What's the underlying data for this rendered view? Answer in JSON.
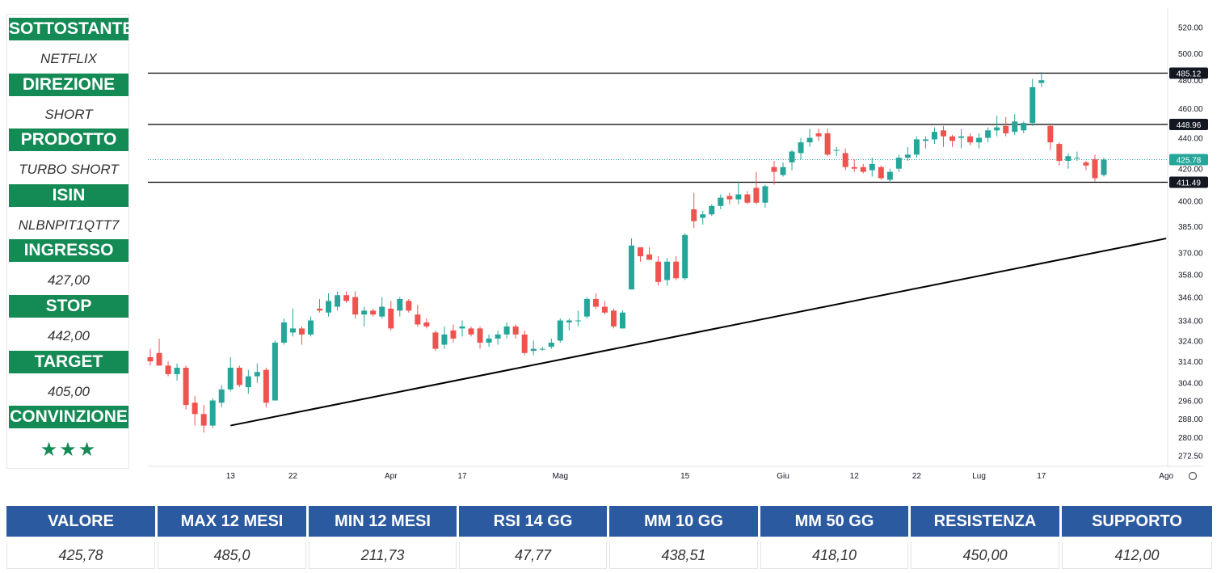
{
  "sidebar": {
    "items": [
      {
        "label": "SOTTOSTANTE",
        "value": "NETFLIX"
      },
      {
        "label": "DIREZIONE",
        "value": "SHORT"
      },
      {
        "label": "PRODOTTO",
        "value": "TURBO SHORT"
      },
      {
        "label": "ISIN",
        "value": "NLBNPIT1QTT7"
      },
      {
        "label": "INGRESSO",
        "value": "427,00"
      },
      {
        "label": "STOP",
        "value": "442,00"
      },
      {
        "label": "TARGET",
        "value": "405,00"
      },
      {
        "label": "CONVINZIONE",
        "value": "★★★"
      }
    ]
  },
  "stats": {
    "columns": [
      {
        "label": "VALORE",
        "value": "425,78"
      },
      {
        "label": "MAX 12 MESI",
        "value": "485,0"
      },
      {
        "label": "MIN 12 MESI",
        "value": "211,73"
      },
      {
        "label": "RSI 14 GG",
        "value": "47,77"
      },
      {
        "label": "MM 10 GG",
        "value": "438,51"
      },
      {
        "label": "MM 50 GG",
        "value": "418,10"
      },
      {
        "label": "RESISTENZA",
        "value": "450,00"
      },
      {
        "label": "SUPPORTO",
        "value": "412,00"
      }
    ]
  },
  "chart_data": {
    "type": "candlestick",
    "y_scale": "log",
    "y_ticks": [
      "520.00",
      "500.00",
      "480.00",
      "460.00",
      "440.00",
      "420.00",
      "400.00",
      "385.00",
      "370.00",
      "358.00",
      "346.00",
      "334.00",
      "324.00",
      "314.00",
      "304.00",
      "296.00",
      "288.00",
      "280.00",
      "272.50"
    ],
    "x_tick_labels": [
      "13",
      "22",
      "Apr",
      "17",
      "Mag",
      "15",
      "Giu",
      "12",
      "22",
      "Lug",
      "17",
      "Ago"
    ],
    "horizontal_levels": [
      {
        "value": 485.12,
        "label": "485.12"
      },
      {
        "value": 448.96,
        "label": "448.96"
      },
      {
        "value": 411.49,
        "label": "411.49"
      }
    ],
    "last_price": {
      "value": 425.78,
      "label": "425.78"
    },
    "trendline": {
      "start": {
        "x": "13",
        "y": 285
      },
      "end": {
        "x": "Ago",
        "y": 378
      }
    },
    "candles": [
      {
        "o": 316,
        "h": 320,
        "l": 312,
        "c": 314
      },
      {
        "o": 318,
        "h": 325,
        "l": 312,
        "c": 312
      },
      {
        "o": 312,
        "h": 314,
        "l": 307,
        "c": 308
      },
      {
        "o": 308,
        "h": 313,
        "l": 305,
        "c": 311
      },
      {
        "o": 311,
        "h": 312,
        "l": 292,
        "c": 294
      },
      {
        "o": 295,
        "h": 298,
        "l": 285,
        "c": 290
      },
      {
        "o": 290,
        "h": 294,
        "l": 282,
        "c": 285
      },
      {
        "o": 285,
        "h": 297,
        "l": 284,
        "c": 296
      },
      {
        "o": 295,
        "h": 303,
        "l": 293,
        "c": 301
      },
      {
        "o": 301,
        "h": 316,
        "l": 300,
        "c": 311
      },
      {
        "o": 311,
        "h": 312,
        "l": 302,
        "c": 303
      },
      {
        "o": 302,
        "h": 310,
        "l": 299,
        "c": 307
      },
      {
        "o": 307,
        "h": 313,
        "l": 304,
        "c": 309
      },
      {
        "o": 310,
        "h": 311,
        "l": 293,
        "c": 295
      },
      {
        "o": 296,
        "h": 324,
        "l": 296,
        "c": 323
      },
      {
        "o": 323,
        "h": 335,
        "l": 322,
        "c": 333
      },
      {
        "o": 328,
        "h": 340,
        "l": 326,
        "c": 330
      },
      {
        "o": 330,
        "h": 331,
        "l": 322,
        "c": 327
      },
      {
        "o": 327,
        "h": 336,
        "l": 326,
        "c": 334
      },
      {
        "o": 340,
        "h": 345,
        "l": 338,
        "c": 339
      },
      {
        "o": 338,
        "h": 348,
        "l": 336,
        "c": 344
      },
      {
        "o": 341,
        "h": 349,
        "l": 339,
        "c": 347
      },
      {
        "o": 347,
        "h": 349,
        "l": 343,
        "c": 344
      },
      {
        "o": 346,
        "h": 349,
        "l": 335,
        "c": 337
      },
      {
        "o": 337,
        "h": 341,
        "l": 331,
        "c": 339
      },
      {
        "o": 339,
        "h": 340,
        "l": 336,
        "c": 337
      },
      {
        "o": 336,
        "h": 346,
        "l": 335,
        "c": 341
      },
      {
        "o": 340,
        "h": 344,
        "l": 329,
        "c": 330
      },
      {
        "o": 339,
        "h": 346,
        "l": 336,
        "c": 345
      },
      {
        "o": 344,
        "h": 345,
        "l": 338,
        "c": 339
      },
      {
        "o": 337,
        "h": 342,
        "l": 331,
        "c": 332
      },
      {
        "o": 333,
        "h": 335,
        "l": 330,
        "c": 331
      },
      {
        "o": 328,
        "h": 329,
        "l": 319,
        "c": 320
      },
      {
        "o": 322,
        "h": 331,
        "l": 320,
        "c": 327
      },
      {
        "o": 329,
        "h": 332,
        "l": 323,
        "c": 325
      },
      {
        "o": 330,
        "h": 334,
        "l": 326,
        "c": 331
      },
      {
        "o": 330,
        "h": 331,
        "l": 326,
        "c": 327
      },
      {
        "o": 330,
        "h": 331,
        "l": 320,
        "c": 323
      },
      {
        "o": 323,
        "h": 327,
        "l": 321,
        "c": 325
      },
      {
        "o": 325,
        "h": 329,
        "l": 322,
        "c": 327
      },
      {
        "o": 327,
        "h": 333,
        "l": 325,
        "c": 331
      },
      {
        "o": 331,
        "h": 332,
        "l": 325,
        "c": 327
      },
      {
        "o": 327,
        "h": 329,
        "l": 317,
        "c": 318
      },
      {
        "o": 319,
        "h": 324,
        "l": 317,
        "c": 320
      },
      {
        "o": 320,
        "h": 321,
        "l": 319,
        "c": 320
      },
      {
        "o": 321,
        "h": 325,
        "l": 320,
        "c": 323
      },
      {
        "o": 324,
        "h": 335,
        "l": 323,
        "c": 334
      },
      {
        "o": 333,
        "h": 335,
        "l": 329,
        "c": 334
      },
      {
        "o": 334,
        "h": 339,
        "l": 331,
        "c": 334
      },
      {
        "o": 336,
        "h": 346,
        "l": 335,
        "c": 345
      },
      {
        "o": 345,
        "h": 348,
        "l": 340,
        "c": 341
      },
      {
        "o": 341,
        "h": 344,
        "l": 337,
        "c": 338
      },
      {
        "o": 339,
        "h": 340,
        "l": 330,
        "c": 331
      },
      {
        "o": 330,
        "h": 339,
        "l": 330,
        "c": 338
      },
      {
        "o": 350,
        "h": 378,
        "l": 350,
        "c": 374
      },
      {
        "o": 373,
        "h": 373,
        "l": 365,
        "c": 368
      },
      {
        "o": 369,
        "h": 373,
        "l": 366,
        "c": 366
      },
      {
        "o": 365,
        "h": 368,
        "l": 352,
        "c": 354
      },
      {
        "o": 355,
        "h": 367,
        "l": 352,
        "c": 365
      },
      {
        "o": 365,
        "h": 368,
        "l": 355,
        "c": 356
      },
      {
        "o": 356,
        "h": 381,
        "l": 355,
        "c": 380
      },
      {
        "o": 395,
        "h": 405,
        "l": 384,
        "c": 388
      },
      {
        "o": 390,
        "h": 394,
        "l": 386,
        "c": 392
      },
      {
        "o": 392,
        "h": 398,
        "l": 391,
        "c": 397
      },
      {
        "o": 397,
        "h": 404,
        "l": 395,
        "c": 402
      },
      {
        "o": 403,
        "h": 405,
        "l": 398,
        "c": 401
      },
      {
        "o": 401,
        "h": 412,
        "l": 398,
        "c": 404
      },
      {
        "o": 404,
        "h": 406,
        "l": 398,
        "c": 399
      },
      {
        "o": 408,
        "h": 418,
        "l": 398,
        "c": 399
      },
      {
        "o": 399,
        "h": 410,
        "l": 396,
        "c": 409
      },
      {
        "o": 421,
        "h": 425,
        "l": 410,
        "c": 418
      },
      {
        "o": 416,
        "h": 424,
        "l": 415,
        "c": 421
      },
      {
        "o": 424,
        "h": 432,
        "l": 419,
        "c": 431
      },
      {
        "o": 430,
        "h": 440,
        "l": 426,
        "c": 437
      },
      {
        "o": 437,
        "h": 446,
        "l": 434,
        "c": 440
      },
      {
        "o": 443,
        "h": 446,
        "l": 438,
        "c": 441
      },
      {
        "o": 443,
        "h": 446,
        "l": 428,
        "c": 429
      },
      {
        "o": 432,
        "h": 434,
        "l": 428,
        "c": 432
      },
      {
        "o": 430,
        "h": 433,
        "l": 419,
        "c": 421
      },
      {
        "o": 421,
        "h": 426,
        "l": 418,
        "c": 420
      },
      {
        "o": 421,
        "h": 423,
        "l": 417,
        "c": 418
      },
      {
        "o": 419,
        "h": 427,
        "l": 415,
        "c": 423
      },
      {
        "o": 421,
        "h": 422,
        "l": 413,
        "c": 414
      },
      {
        "o": 413,
        "h": 420,
        "l": 411,
        "c": 418
      },
      {
        "o": 420,
        "h": 429,
        "l": 418,
        "c": 427
      },
      {
        "o": 427,
        "h": 434,
        "l": 425,
        "c": 429
      },
      {
        "o": 429,
        "h": 441,
        "l": 427,
        "c": 439
      },
      {
        "o": 438,
        "h": 441,
        "l": 433,
        "c": 439
      },
      {
        "o": 439,
        "h": 447,
        "l": 436,
        "c": 444
      },
      {
        "o": 445,
        "h": 448,
        "l": 434,
        "c": 441
      },
      {
        "o": 441,
        "h": 442,
        "l": 434,
        "c": 438
      },
      {
        "o": 440,
        "h": 446,
        "l": 433,
        "c": 441
      },
      {
        "o": 441,
        "h": 443,
        "l": 435,
        "c": 437
      },
      {
        "o": 437,
        "h": 443,
        "l": 433,
        "c": 440
      },
      {
        "o": 440,
        "h": 447,
        "l": 437,
        "c": 445
      },
      {
        "o": 445,
        "h": 455,
        "l": 441,
        "c": 447
      },
      {
        "o": 448,
        "h": 454,
        "l": 441,
        "c": 443
      },
      {
        "o": 444,
        "h": 456,
        "l": 442,
        "c": 451
      },
      {
        "o": 445,
        "h": 451,
        "l": 443,
        "c": 450
      },
      {
        "o": 450,
        "h": 481,
        "l": 448,
        "c": 475
      },
      {
        "o": 478,
        "h": 486,
        "l": 475,
        "c": 480
      },
      {
        "o": 448,
        "h": 449,
        "l": 432,
        "c": 437
      },
      {
        "o": 436,
        "h": 437,
        "l": 422,
        "c": 425
      },
      {
        "o": 425,
        "h": 430,
        "l": 420,
        "c": 428
      },
      {
        "o": 427,
        "h": 431,
        "l": 425,
        "c": 427
      },
      {
        "o": 424,
        "h": 425,
        "l": 419,
        "c": 422
      },
      {
        "o": 426,
        "h": 429,
        "l": 412,
        "c": 414
      },
      {
        "o": 416,
        "h": 427,
        "l": 415,
        "c": 425.78
      }
    ]
  }
}
